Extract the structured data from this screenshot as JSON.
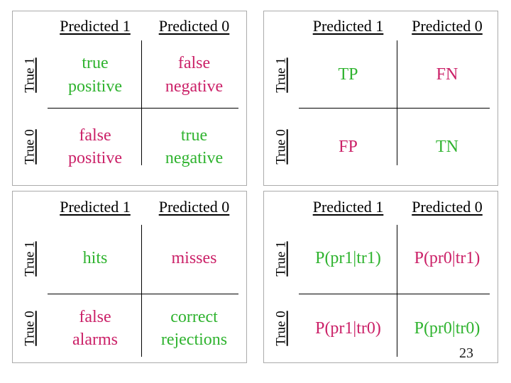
{
  "slide": {
    "page_number": "23"
  },
  "colors": {
    "correct": "#2fb32f",
    "error": "#cb2168",
    "text": "#000000",
    "panel_border": "#ababab",
    "background": "#ffffff"
  },
  "panels": [
    {
      "col_headers": [
        "Predicted 1",
        "Predicted 0"
      ],
      "row_headers": [
        "True 1",
        "True 0"
      ],
      "cells": [
        {
          "label": "true\npositive",
          "tone": "correct"
        },
        {
          "label": "false\nnegative",
          "tone": "error"
        },
        {
          "label": "false\npositive",
          "tone": "error"
        },
        {
          "label": "true\nnegative",
          "tone": "correct"
        }
      ]
    },
    {
      "col_headers": [
        "Predicted 1",
        "Predicted 0"
      ],
      "row_headers": [
        "True 1",
        "True 0"
      ],
      "cells": [
        {
          "label": "TP",
          "tone": "correct"
        },
        {
          "label": "FN",
          "tone": "error"
        },
        {
          "label": "FP",
          "tone": "error"
        },
        {
          "label": "TN",
          "tone": "correct"
        }
      ]
    },
    {
      "col_headers": [
        "Predicted 1",
        "Predicted 0"
      ],
      "row_headers": [
        "True 1",
        "True 0"
      ],
      "cells": [
        {
          "label": "hits",
          "tone": "correct"
        },
        {
          "label": "misses",
          "tone": "error"
        },
        {
          "label": "false\nalarms",
          "tone": "error"
        },
        {
          "label": "correct\nrejections",
          "tone": "correct"
        }
      ]
    },
    {
      "col_headers": [
        "Predicted 1",
        "Predicted 0"
      ],
      "row_headers": [
        "True 1",
        "True 0"
      ],
      "cells": [
        {
          "label": "P(pr1|tr1)",
          "tone": "correct"
        },
        {
          "label": "P(pr0|tr1)",
          "tone": "error"
        },
        {
          "label": "P(pr1|tr0)",
          "tone": "error"
        },
        {
          "label": "P(pr0|tr0)",
          "tone": "correct"
        }
      ]
    }
  ]
}
